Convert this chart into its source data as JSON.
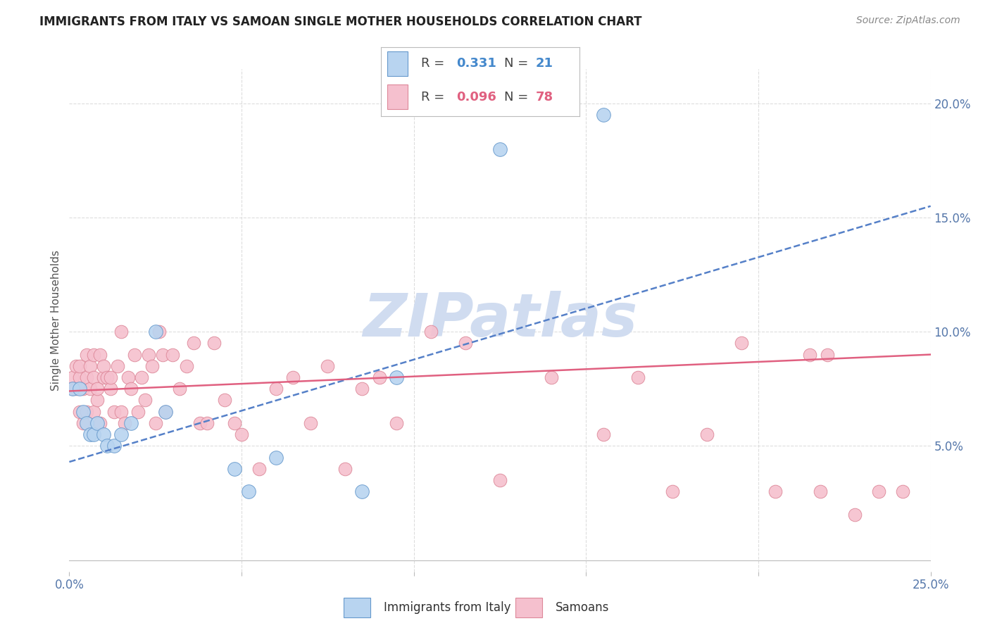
{
  "title": "IMMIGRANTS FROM ITALY VS SAMOAN SINGLE MOTHER HOUSEHOLDS CORRELATION CHART",
  "source": "Source: ZipAtlas.com",
  "ylabel": "Single Mother Households",
  "legend_italy": "Immigrants from Italy",
  "legend_samoans": "Samoans",
  "italy_R": "0.331",
  "italy_N": "21",
  "samoans_R": "0.096",
  "samoans_N": "78",
  "xlim": [
    0.0,
    0.25
  ],
  "ylim": [
    -0.005,
    0.215
  ],
  "yticks": [
    0.05,
    0.1,
    0.15,
    0.2
  ],
  "ytick_labels": [
    "5.0%",
    "10.0%",
    "15.0%",
    "20.0%"
  ],
  "xticks": [
    0.0,
    0.05,
    0.1,
    0.15,
    0.2,
    0.25
  ],
  "xtick_labels": [
    "0.0%",
    "",
    "",
    "",
    "",
    "25.0%"
  ],
  "italy_color": "#b8d4f0",
  "italy_edge": "#6699cc",
  "samoans_color": "#f5c0ce",
  "samoans_edge": "#dd8899",
  "line_italy_color": "#5580c8",
  "line_samoans_color": "#e06080",
  "watermark": "ZIPatlas",
  "watermark_color": "#d0dcf0",
  "background": "#ffffff",
  "grid_color": "#dddddd",
  "title_color": "#222222",
  "axis_color": "#5577aa",
  "italy_x": [
    0.001,
    0.003,
    0.004,
    0.005,
    0.006,
    0.007,
    0.008,
    0.01,
    0.011,
    0.013,
    0.015,
    0.018,
    0.025,
    0.028,
    0.048,
    0.052,
    0.06,
    0.085,
    0.095,
    0.125,
    0.155
  ],
  "italy_y": [
    0.075,
    0.075,
    0.065,
    0.06,
    0.055,
    0.055,
    0.06,
    0.055,
    0.05,
    0.05,
    0.055,
    0.06,
    0.1,
    0.065,
    0.04,
    0.03,
    0.045,
    0.03,
    0.08,
    0.18,
    0.195
  ],
  "samoans_x": [
    0.001,
    0.001,
    0.002,
    0.002,
    0.003,
    0.003,
    0.003,
    0.004,
    0.004,
    0.005,
    0.005,
    0.005,
    0.006,
    0.006,
    0.007,
    0.007,
    0.007,
    0.008,
    0.008,
    0.009,
    0.009,
    0.01,
    0.01,
    0.011,
    0.012,
    0.012,
    0.013,
    0.014,
    0.015,
    0.015,
    0.016,
    0.017,
    0.018,
    0.019,
    0.02,
    0.021,
    0.022,
    0.023,
    0.024,
    0.025,
    0.026,
    0.027,
    0.028,
    0.03,
    0.032,
    0.034,
    0.036,
    0.038,
    0.04,
    0.042,
    0.045,
    0.048,
    0.05,
    0.055,
    0.06,
    0.065,
    0.07,
    0.075,
    0.08,
    0.085,
    0.09,
    0.095,
    0.105,
    0.115,
    0.125,
    0.14,
    0.155,
    0.165,
    0.175,
    0.185,
    0.195,
    0.205,
    0.215,
    0.218,
    0.22,
    0.228,
    0.235,
    0.242
  ],
  "samoans_y": [
    0.08,
    0.075,
    0.075,
    0.085,
    0.065,
    0.08,
    0.085,
    0.06,
    0.075,
    0.065,
    0.08,
    0.09,
    0.075,
    0.085,
    0.065,
    0.08,
    0.09,
    0.07,
    0.075,
    0.06,
    0.09,
    0.08,
    0.085,
    0.08,
    0.075,
    0.08,
    0.065,
    0.085,
    0.065,
    0.1,
    0.06,
    0.08,
    0.075,
    0.09,
    0.065,
    0.08,
    0.07,
    0.09,
    0.085,
    0.06,
    0.1,
    0.09,
    0.065,
    0.09,
    0.075,
    0.085,
    0.095,
    0.06,
    0.06,
    0.095,
    0.07,
    0.06,
    0.055,
    0.04,
    0.075,
    0.08,
    0.06,
    0.085,
    0.04,
    0.075,
    0.08,
    0.06,
    0.1,
    0.095,
    0.035,
    0.08,
    0.055,
    0.08,
    0.03,
    0.055,
    0.095,
    0.03,
    0.09,
    0.03,
    0.09,
    0.02,
    0.03,
    0.03
  ],
  "italy_line_x": [
    0.0,
    0.25
  ],
  "italy_line_y": [
    0.043,
    0.155
  ],
  "samoans_line_x": [
    0.0,
    0.25
  ],
  "samoans_line_y": [
    0.074,
    0.09
  ]
}
